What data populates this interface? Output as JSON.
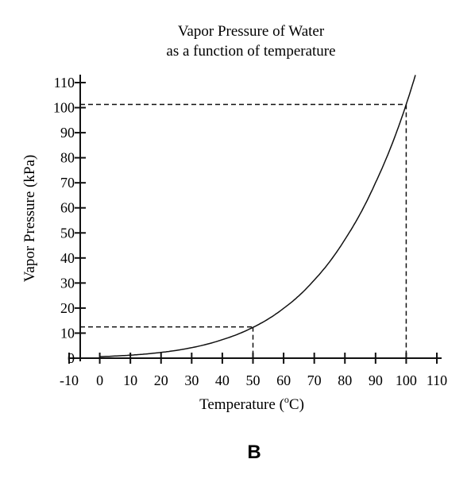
{
  "figure_label": "B",
  "chart_data": {
    "type": "line",
    "title": "Vapor Pressure of Water",
    "subtitle": "as a function of temperature",
    "xlabel_main": "Temperature (",
    "xlabel_sup": "o",
    "xlabel_end": "C)",
    "ylabel": "Vapor Pressure (kPa)",
    "xlim": [
      -10,
      110
    ],
    "ylim": [
      0,
      110
    ],
    "x_ticks": [
      -10,
      0,
      10,
      20,
      30,
      40,
      50,
      60,
      70,
      80,
      90,
      100,
      110
    ],
    "x_tick_labels": [
      "-10",
      "0",
      "10",
      "20",
      "30",
      "40",
      "50",
      "60",
      "70",
      "80",
      "90",
      "100",
      "110"
    ],
    "y_ticks": [
      0,
      10,
      20,
      30,
      40,
      50,
      60,
      70,
      80,
      90,
      100,
      110
    ],
    "y_tick_labels": [
      "0",
      "10",
      "20",
      "30",
      "40",
      "50",
      "60",
      "70",
      "80",
      "90",
      "100",
      "110"
    ],
    "grid": false,
    "series": [
      {
        "x": [
          0,
          10,
          20,
          30,
          40,
          50,
          60,
          70,
          80,
          90,
          100,
          103
        ],
        "y": [
          0.6,
          1.2,
          2.3,
          4.2,
          7.4,
          12.3,
          19.9,
          31.2,
          47.4,
          70.1,
          101.3,
          113
        ]
      }
    ],
    "reference_lines": [
      {
        "x": 50,
        "y": 12.5
      },
      {
        "x": 100,
        "y": 101.3
      }
    ]
  }
}
